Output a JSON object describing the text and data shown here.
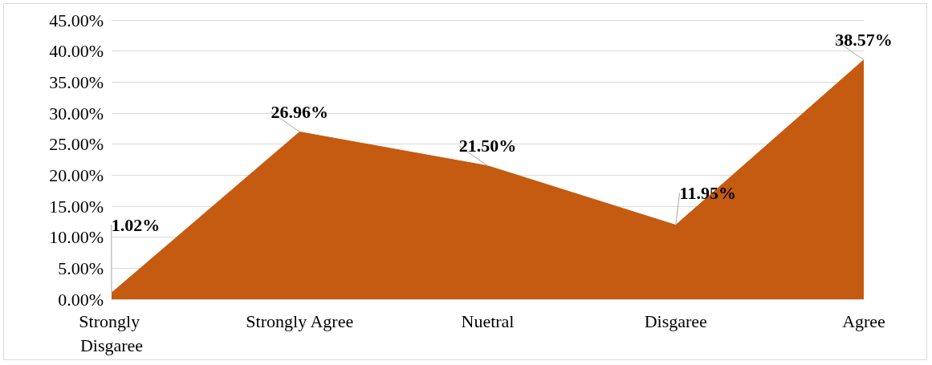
{
  "chart_data": {
    "type": "area",
    "categories": [
      "Strongly Disgaree",
      "Strongly Agree",
      "Nuetral",
      "Disgaree",
      "Agree"
    ],
    "series": [
      {
        "color": "#c55a11",
        "values": [
          1.02,
          26.96,
          21.5,
          11.95,
          38.57
        ],
        "value_labels": [
          "1.02%",
          "26.96%",
          "21.50%",
          "11.95%",
          "38.57%"
        ]
      }
    ],
    "ylim": [
      0,
      45
    ],
    "yticks": [
      {
        "value": 0,
        "label": "0.00%"
      },
      {
        "value": 5,
        "label": "5.00%"
      },
      {
        "value": 10,
        "label": "10.00%"
      },
      {
        "value": 15,
        "label": "15.00%"
      },
      {
        "value": 20,
        "label": "20.00%"
      },
      {
        "value": 25,
        "label": "25.00%"
      },
      {
        "value": 30,
        "label": "30.00%"
      },
      {
        "value": 35,
        "label": "35.00%"
      },
      {
        "value": 40,
        "label": "40.00%"
      },
      {
        "value": 45,
        "label": "45.00%"
      }
    ],
    "grid": "y"
  }
}
